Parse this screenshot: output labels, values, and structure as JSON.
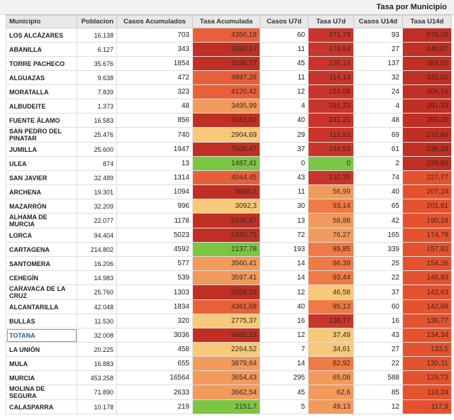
{
  "header": {
    "title": "Tasa por Municipio"
  },
  "table": {
    "columns": [
      "Municipio",
      "Poblacion",
      "Casos Acumulados",
      "Tasa Acumulada",
      "Casos U7d",
      "Tasa U7d",
      "Casos U14d",
      "Tasa U14d"
    ],
    "rows": [
      {
        "cells": [
          "LOS ALCÁZARES",
          "16.138",
          "703",
          "4356,18",
          "60",
          "371,79",
          "93",
          "576,28"
        ],
        "colors": [
          "#e8603a",
          "#c9352a",
          "#bf2f24"
        ]
      },
      {
        "cells": [
          "ABANILLA",
          "6.127",
          "343",
          "5598,17",
          "11",
          "179,53",
          "27",
          "440,67"
        ],
        "colors": [
          "#bf2f24",
          "#c9352a",
          "#bf2f24"
        ]
      },
      {
        "cells": [
          "TORRE PACHECO",
          "35.676",
          "1854",
          "5196,77",
          "45",
          "126,14",
          "137",
          "384,01"
        ],
        "colors": [
          "#bf2f24",
          "#c9352a",
          "#bf2f24"
        ]
      },
      {
        "cells": [
          "ALGUAZAS",
          "9.638",
          "472",
          "4897,28",
          "11",
          "114,13",
          "32",
          "332,02"
        ],
        "colors": [
          "#e8603a",
          "#c9352a",
          "#bf2f24"
        ]
      },
      {
        "cells": [
          "MORATALLA",
          "7.839",
          "323",
          "4120,42",
          "12",
          "153,08",
          "24",
          "306,16"
        ],
        "colors": [
          "#e8603a",
          "#c9352a",
          "#bf2f24"
        ]
      },
      {
        "cells": [
          "ALBUDEITE",
          "1.373",
          "48",
          "3495,99",
          "4",
          "291,33",
          "4",
          "291,33"
        ],
        "colors": [
          "#f29a5c",
          "#c9352a",
          "#bf2f24"
        ]
      },
      {
        "cells": [
          "FUENTE ÁLAMO",
          "16.583",
          "856",
          "5161,91",
          "40",
          "241,21",
          "48",
          "289,45"
        ],
        "colors": [
          "#bf2f24",
          "#c9352a",
          "#bf2f24"
        ]
      },
      {
        "cells": [
          "SAN PEDRO DEL PINATAR",
          "25.476",
          "740",
          "2904,69",
          "29",
          "113,83",
          "69",
          "270,84"
        ],
        "colors": [
          "#f7c978",
          "#c9352a",
          "#bf2f24"
        ]
      },
      {
        "cells": [
          "JUMILLA",
          "25.600",
          "1947",
          "7605,47",
          "37",
          "144,53",
          "61",
          "238,28"
        ],
        "colors": [
          "#bf2f24",
          "#c9352a",
          "#bf2f24"
        ]
      },
      {
        "cells": [
          "ULEA",
          "874",
          "13",
          "1487,41",
          "0",
          "0",
          "2",
          "228,83"
        ],
        "colors": [
          "#7cc644",
          "#7cc644",
          "#bf2f24"
        ]
      },
      {
        "cells": [
          "SAN JAVIER",
          "32.489",
          "1314",
          "4044,45",
          "43",
          "132,35",
          "74",
          "227,77"
        ],
        "colors": [
          "#e8603a",
          "#c9352a",
          "#e5522f"
        ]
      },
      {
        "cells": [
          "ARCHENA",
          "19.301",
          "1094",
          "5668,1",
          "11",
          "56,99",
          "40",
          "207,24"
        ],
        "colors": [
          "#bf2f24",
          "#f29a5c",
          "#e5522f"
        ]
      },
      {
        "cells": [
          "MAZARRÓN",
          "32.209",
          "996",
          "3092,3",
          "30",
          "93,14",
          "65",
          "201,81"
        ],
        "colors": [
          "#f7c978",
          "#ef7a45",
          "#e5522f"
        ]
      },
      {
        "cells": [
          "ALHAMA DE MURCIA",
          "22.077",
          "1178",
          "5335,87",
          "13",
          "58,88",
          "42",
          "190,24"
        ],
        "colors": [
          "#bf2f24",
          "#f29a5c",
          "#e5522f"
        ]
      },
      {
        "cells": [
          "LORCA",
          "94.404",
          "5023",
          "5320,75",
          "72",
          "76,27",
          "165",
          "174,78"
        ],
        "colors": [
          "#bf2f24",
          "#f29a5c",
          "#e5522f"
        ]
      },
      {
        "cells": [
          "CARTAGENA",
          "214.802",
          "4592",
          "2137,78",
          "193",
          "89,85",
          "339",
          "157,82"
        ],
        "colors": [
          "#7cc644",
          "#ef7a45",
          "#e5522f"
        ]
      },
      {
        "cells": [
          "SANTOMERA",
          "16.206",
          "577",
          "3560,41",
          "14",
          "86,39",
          "25",
          "154,26"
        ],
        "colors": [
          "#f29a5c",
          "#ef7a45",
          "#e5522f"
        ]
      },
      {
        "cells": [
          "CEHEGÍN",
          "14.983",
          "539",
          "3597,41",
          "14",
          "93,44",
          "22",
          "146,83"
        ],
        "colors": [
          "#f29a5c",
          "#ef7a45",
          "#e5522f"
        ]
      },
      {
        "cells": [
          "CARAVACA DE LA CRUZ",
          "25.760",
          "1303",
          "5058,23",
          "12",
          "46,58",
          "37",
          "143,63"
        ],
        "colors": [
          "#bf2f24",
          "#f7c978",
          "#e5522f"
        ]
      },
      {
        "cells": [
          "ALCANTARILLA",
          "42.048",
          "1834",
          "4361,68",
          "40",
          "95,13",
          "60",
          "142,69"
        ],
        "colors": [
          "#e8603a",
          "#ef7a45",
          "#e5522f"
        ]
      },
      {
        "cells": [
          "BULLAS",
          "11.530",
          "320",
          "2775,37",
          "16",
          "138,77",
          "16",
          "138,77"
        ],
        "colors": [
          "#f7c978",
          "#c9352a",
          "#e5522f"
        ]
      },
      {
        "cells": [
          "TOTANA",
          "32.008",
          "3036",
          "9485,13",
          "12",
          "37,49",
          "43",
          "134,34"
        ],
        "colors": [
          "#bf2f24",
          "#f7c978",
          "#e5522f"
        ]
      },
      {
        "cells": [
          "LA UNIÓN",
          "20.225",
          "458",
          "2264,52",
          "7",
          "34,61",
          "27",
          "133,5"
        ],
        "colors": [
          "#f7c978",
          "#f7c978",
          "#e5522f"
        ]
      },
      {
        "cells": [
          "MULA",
          "16.883",
          "655",
          "3879,64",
          "14",
          "82,92",
          "22",
          "130,31"
        ],
        "colors": [
          "#f29a5c",
          "#ef7a45",
          "#e5522f"
        ]
      },
      {
        "cells": [
          "MURCIA",
          "453.258",
          "16564",
          "3654,43",
          "295",
          "65,08",
          "588",
          "129,73"
        ],
        "colors": [
          "#f29a5c",
          "#f29a5c",
          "#e5522f"
        ]
      },
      {
        "cells": [
          "MOLINA DE SEGURA",
          "71.890",
          "2633",
          "3662,54",
          "45",
          "62,6",
          "85",
          "118,24"
        ],
        "colors": [
          "#f29a5c",
          "#f29a5c",
          "#e5522f"
        ]
      },
      {
        "cells": [
          "CALASPARRA",
          "10.178",
          "219",
          "2151,7",
          "5",
          "49,13",
          "12",
          "117,9"
        ],
        "colors": [
          "#7cc644",
          "#f29a5c",
          "#e5522f"
        ]
      }
    ]
  }
}
